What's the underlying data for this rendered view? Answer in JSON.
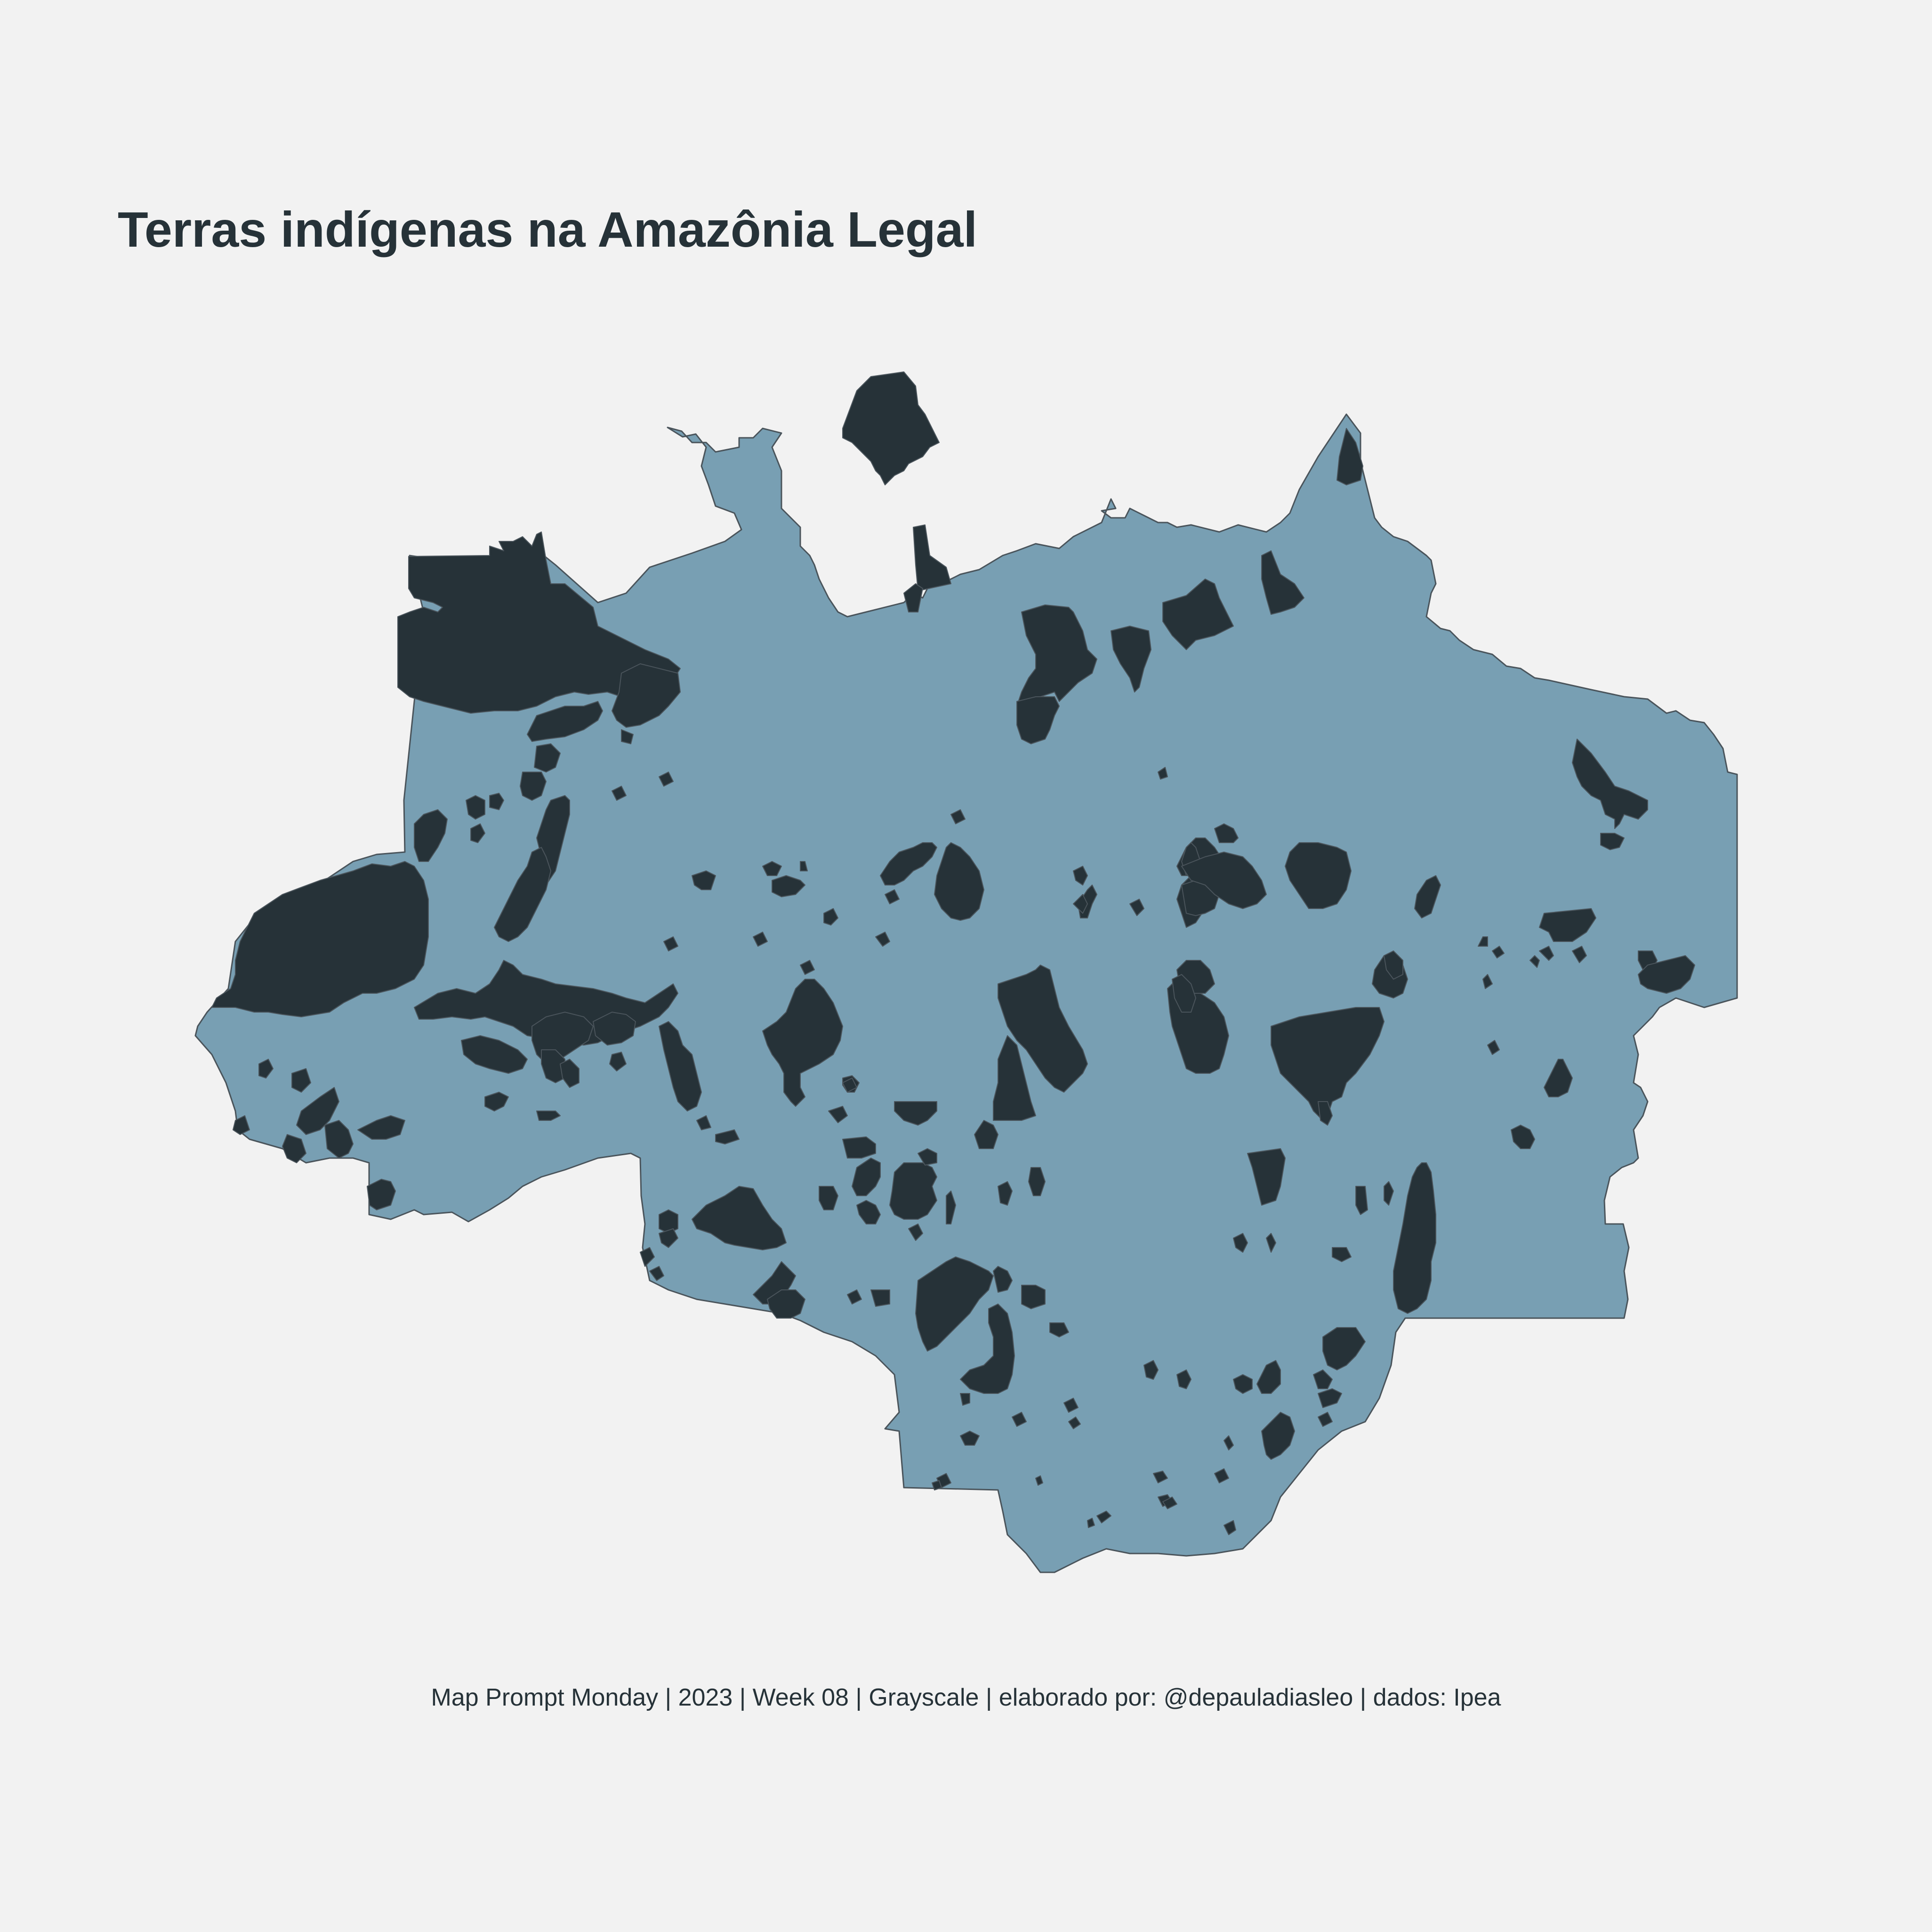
{
  "title": "Terras indígenas na Amazônia Legal",
  "caption": "Map Prompt Monday | 2023 | Week 08 | Grayscale | elaborado por: @depauladiasleo | dados: Ipea",
  "colors": {
    "background": "#f2f2f2",
    "region_fill": "#789fb3",
    "territory_fill": "#263238",
    "outline": "#4a545b",
    "text": "#263238"
  }
}
